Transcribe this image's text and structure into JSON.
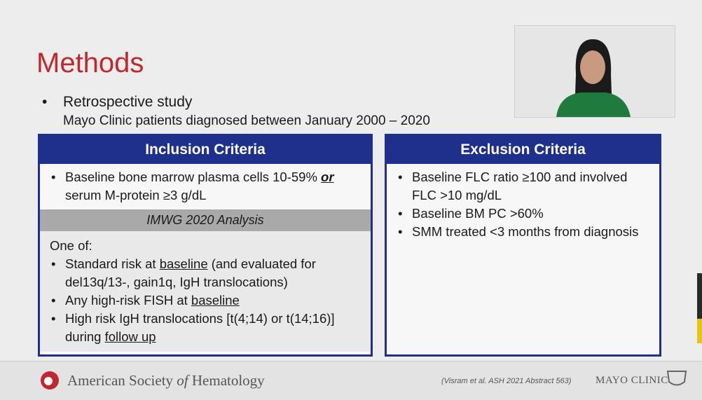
{
  "header": {
    "title": "Methods"
  },
  "intro": {
    "bullet": "Retrospective study",
    "detail": "Mayo Clinic patients diagnosed between January 2000 – 2020"
  },
  "inclusion": {
    "title": "Inclusion Criteria",
    "criterion": [
      "Baseline bone marrow plasma cells 10-59% ",
      "or",
      " serum M-protein ≥3 g/dL"
    ],
    "band": "IMWG 2020 Analysis",
    "lead": "One of:",
    "items": [
      [
        "Standard risk at ",
        "baseline",
        " (and evaluated for del13q/13-, gain1q, IgH translocations)"
      ],
      [
        "Any high-risk FISH at ",
        "baseline"
      ],
      [
        "High risk IgH translocations [t(4;14) or t(14;16)] during ",
        "follow up"
      ]
    ]
  },
  "exclusion": {
    "title": "Exclusion Criteria",
    "items": [
      "Baseline FLC ratio ≥100 and involved FLC >10 mg/dL",
      "Baseline BM PC >60%",
      "SMM treated <3 months from diagnosis"
    ]
  },
  "footer": {
    "society": [
      "American Society ",
      "of",
      " Hematology"
    ],
    "citation": "(Visram et al. ASH 2021 Abstract 563)",
    "brand": "MAYO CLINIC"
  }
}
